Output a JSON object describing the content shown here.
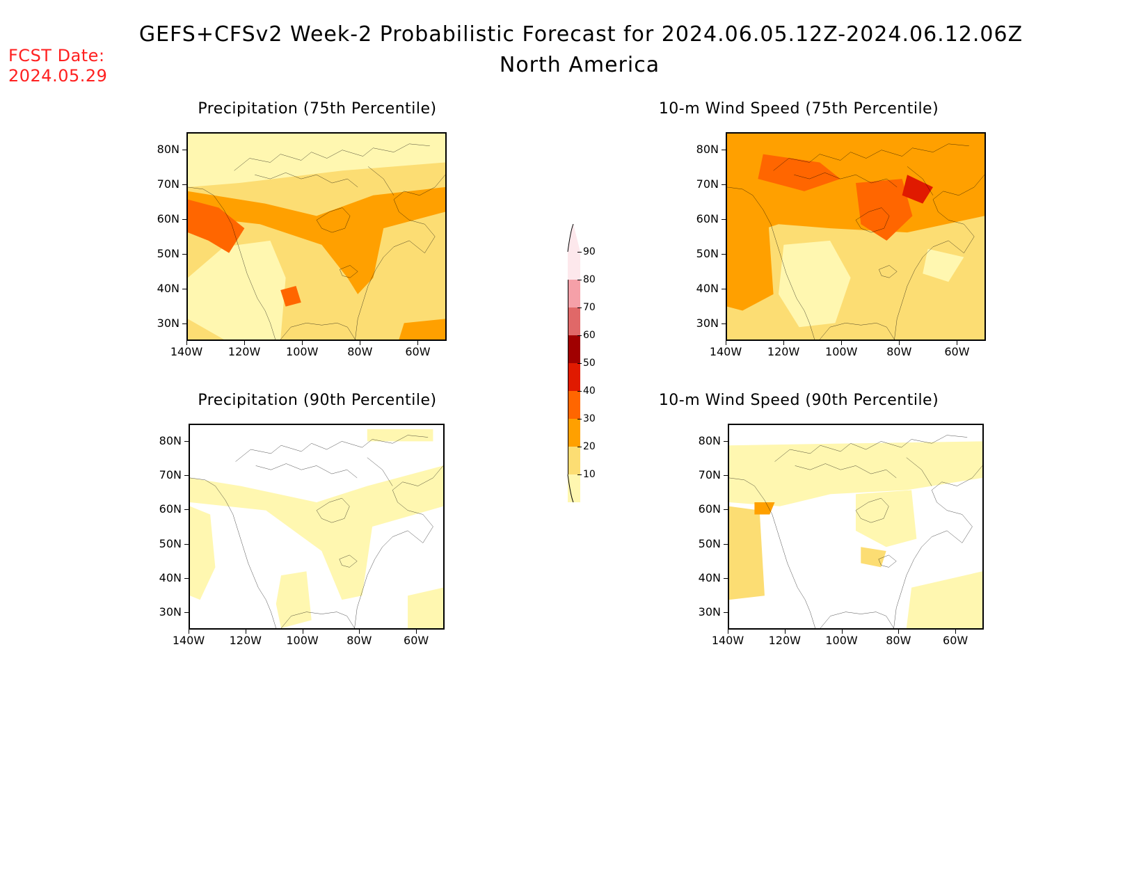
{
  "header": {
    "title": "GEFS+CFSv2 Week-2 Probabilistic Forecast for 2024.06.05.12Z-2024.06.12.06Z",
    "subtitle": "North America",
    "fcst_label": "FCST Date:",
    "fcst_date": "2024.05.29"
  },
  "panels": [
    {
      "title": "Precipitation (75th Percentile)",
      "level": "high"
    },
    {
      "title": "10-m Wind Speed (75th Percentile)",
      "level": "highest"
    },
    {
      "title": "Precipitation (90th Percentile)",
      "level": "low"
    },
    {
      "title": "10-m Wind Speed (90th Percentile)",
      "level": "low-mid"
    }
  ],
  "axes": {
    "lat_labels": [
      "80N",
      "70N",
      "60N",
      "50N",
      "40N",
      "30N"
    ],
    "lon_labels": [
      "140W",
      "120W",
      "100W",
      "80W",
      "60W"
    ]
  },
  "colorbar": {
    "levels": [
      "90",
      "80",
      "70",
      "60",
      "50",
      "40",
      "30",
      "20",
      "10"
    ],
    "colors": [
      "#fde8ec",
      "#f5a0a8",
      "#e06868",
      "#a00000",
      "#e01a00",
      "#ff6600",
      "#ffa000",
      "#fcdd73",
      "#fff7b0"
    ]
  }
}
